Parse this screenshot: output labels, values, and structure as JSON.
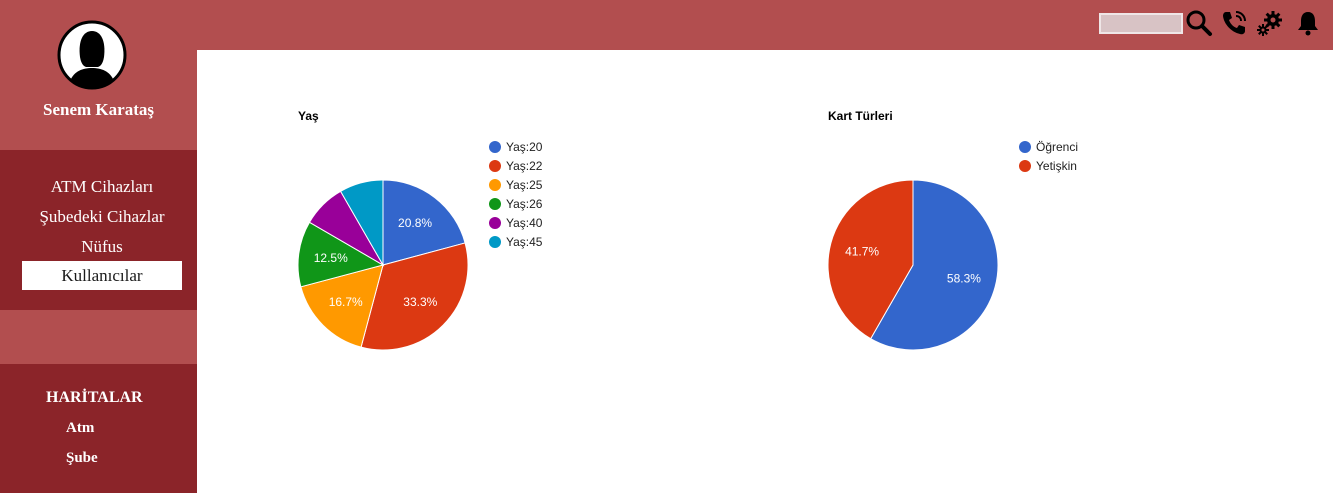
{
  "user": {
    "name": "Senem Karataş"
  },
  "nav": {
    "items": [
      {
        "label": "ATM Cihazları",
        "active": false
      },
      {
        "label": "Şubedeki Cihazlar",
        "active": false
      },
      {
        "label": "Nüfus",
        "active": false
      },
      {
        "label": "Kullanıcılar",
        "active": true
      }
    ]
  },
  "maps": {
    "title": "HARİTALAR",
    "items": [
      {
        "label": "Atm"
      },
      {
        "label": "Şube"
      }
    ]
  },
  "topbar": {
    "search_value": "",
    "icons": [
      "search-icon",
      "phone-icon",
      "gears-icon",
      "bell-icon"
    ]
  },
  "colors": {
    "brand": "#b24e4f",
    "brand_dark": "#8b2429"
  },
  "chart_data": [
    {
      "type": "pie",
      "title": "Yaş",
      "categories": [
        "Yaş:20",
        "Yaş:22",
        "Yaş:25",
        "Yaş:26",
        "Yaş:40",
        "Yaş:45"
      ],
      "values": [
        20.8,
        33.3,
        16.7,
        12.5,
        8.3,
        8.3
      ],
      "labels": [
        "20.8%",
        "33.3%",
        "16.7%",
        "12.5%",
        "",
        ""
      ],
      "colors": [
        "#3366cc",
        "#dc3912",
        "#ff9900",
        "#109618",
        "#990099",
        "#0099c6"
      ],
      "legend": "right"
    },
    {
      "type": "pie",
      "title": "Kart Türleri",
      "categories": [
        "Öğrenci",
        "Yetişkin"
      ],
      "values": [
        58.3,
        41.7
      ],
      "labels": [
        "58.3%",
        "41.7%"
      ],
      "colors": [
        "#3366cc",
        "#dc3912"
      ],
      "legend": "right"
    }
  ]
}
